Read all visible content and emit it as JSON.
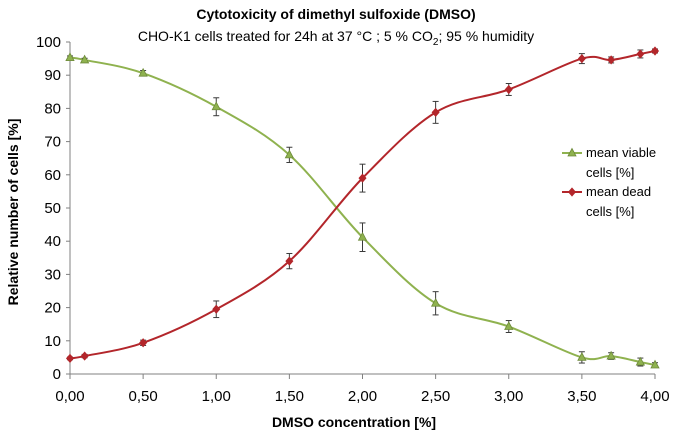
{
  "chart_data": {
    "type": "line",
    "title": "Cytotoxicity of dimethyl sulfoxide (DMSO)",
    "subtitle_main": "CHO-K1 cells treated for 24h at 37 °C ; 5 % CO",
    "subtitle_sub": "2",
    "subtitle_tail": ";  95 % humidity",
    "xlabel": "DMSO concentration [%]",
    "ylabel": "Relative number of cells  [%]",
    "xlim": [
      0,
      4.0
    ],
    "ylim": [
      0,
      100
    ],
    "x_ticks": [
      0,
      0.5,
      1.0,
      1.5,
      2.0,
      2.5,
      3.0,
      3.5,
      4.0
    ],
    "x_tick_labels": [
      "0,00",
      "0,50",
      "1,00",
      "1,50",
      "2,00",
      "2,50",
      "3,00",
      "3,50",
      "4,00"
    ],
    "y_ticks": [
      0,
      10,
      20,
      30,
      40,
      50,
      60,
      70,
      80,
      90,
      100
    ],
    "grid": false,
    "legend_position": "right",
    "series": [
      {
        "name": "mean viable cells [%]",
        "legend_lines": [
          "mean viable",
          "cells [%]"
        ],
        "color": "#8fb24f",
        "marker": "triangle",
        "x": [
          0,
          0.1,
          0.5,
          1.0,
          1.5,
          2.0,
          2.5,
          3.0,
          3.5,
          3.7,
          3.9,
          4.0
        ],
        "y": [
          95.3,
          94.6,
          90.6,
          80.5,
          66.0,
          41.2,
          21.3,
          14.3,
          5.0,
          5.4,
          3.6,
          2.7
        ],
        "err": [
          0.5,
          0.5,
          0.8,
          2.7,
          2.3,
          4.3,
          3.5,
          1.8,
          1.7,
          1.0,
          1.2,
          0.7
        ]
      },
      {
        "name": "mean dead cells [%]",
        "legend_lines": [
          "mean dead",
          "cells [%]"
        ],
        "color": "#b3262b",
        "marker": "diamond",
        "x": [
          0,
          0.1,
          0.5,
          1.0,
          1.5,
          2.0,
          2.5,
          3.0,
          3.5,
          3.7,
          3.9,
          4.0
        ],
        "y": [
          4.7,
          5.4,
          9.4,
          19.5,
          34.0,
          59.0,
          78.8,
          85.7,
          95.0,
          94.6,
          96.4,
          97.3
        ],
        "err": [
          0.4,
          0.5,
          0.8,
          2.5,
          2.3,
          4.2,
          3.3,
          1.8,
          1.5,
          0.9,
          1.2,
          0.6
        ]
      }
    ]
  }
}
